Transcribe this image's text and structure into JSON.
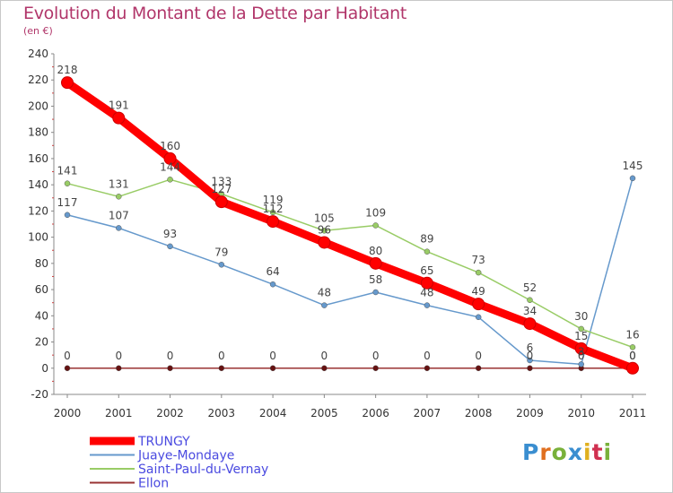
{
  "title": "Evolution du Montant de la Dette par Habitant",
  "subtitle": "(en €)",
  "logo": {
    "text": "Proxiti",
    "colors": [
      "#3a8ed0",
      "#e07020",
      "#79b13a",
      "#3a8ed0",
      "#e0b020",
      "#d03050",
      "#79b13a"
    ]
  },
  "chart_data": {
    "type": "line",
    "x": [
      "2000",
      "2001",
      "2002",
      "2003",
      "2004",
      "2005",
      "2006",
      "2007",
      "2008",
      "2009",
      "2010",
      "2011"
    ],
    "ylim": [
      -20,
      240
    ],
    "yticks": [
      -20,
      0,
      20,
      40,
      60,
      80,
      100,
      120,
      140,
      160,
      180,
      200,
      220,
      240
    ],
    "grid": false,
    "legend_position": "bottom-left",
    "series": [
      {
        "name": "TRUNGY",
        "color": "#ff0000",
        "values": [
          218,
          191,
          160,
          127,
          112,
          96,
          80,
          65,
          49,
          34,
          15,
          0
        ]
      },
      {
        "name": "Juaye-Mondaye",
        "color": "#6699cc",
        "values": [
          117,
          107,
          93,
          79,
          64,
          48,
          58,
          48,
          39,
          6,
          3,
          145
        ]
      },
      {
        "name": "Saint-Paul-du-Vernay",
        "color": "#99cc66",
        "values": [
          141,
          131,
          144,
          133,
          119,
          105,
          109,
          89,
          73,
          52,
          30,
          16
        ]
      },
      {
        "name": "Ellon",
        "color": "#993333",
        "values": [
          0,
          0,
          0,
          0,
          0,
          0,
          0,
          0,
          0,
          0,
          0,
          0
        ]
      }
    ],
    "data_labels": [
      {
        "series": 0,
        "values": [
          "218",
          "191",
          "160",
          "127",
          "112",
          "96",
          "80",
          "65",
          "49",
          "34",
          "15",
          "0"
        ]
      },
      {
        "series": 1,
        "values": [
          "117",
          "107",
          "93",
          "79",
          "64",
          "48",
          "58",
          "48",
          "",
          "6",
          "3",
          "145"
        ]
      },
      {
        "series": 2,
        "values": [
          "141",
          "131",
          "144",
          "133",
          "119",
          "105",
          "109",
          "89",
          "73",
          "52",
          "30",
          "16"
        ]
      },
      {
        "series": 3,
        "values": [
          "0",
          "0",
          "0",
          "0",
          "0",
          "0",
          "0",
          "0",
          "0",
          "0",
          "0",
          "0"
        ]
      }
    ]
  }
}
